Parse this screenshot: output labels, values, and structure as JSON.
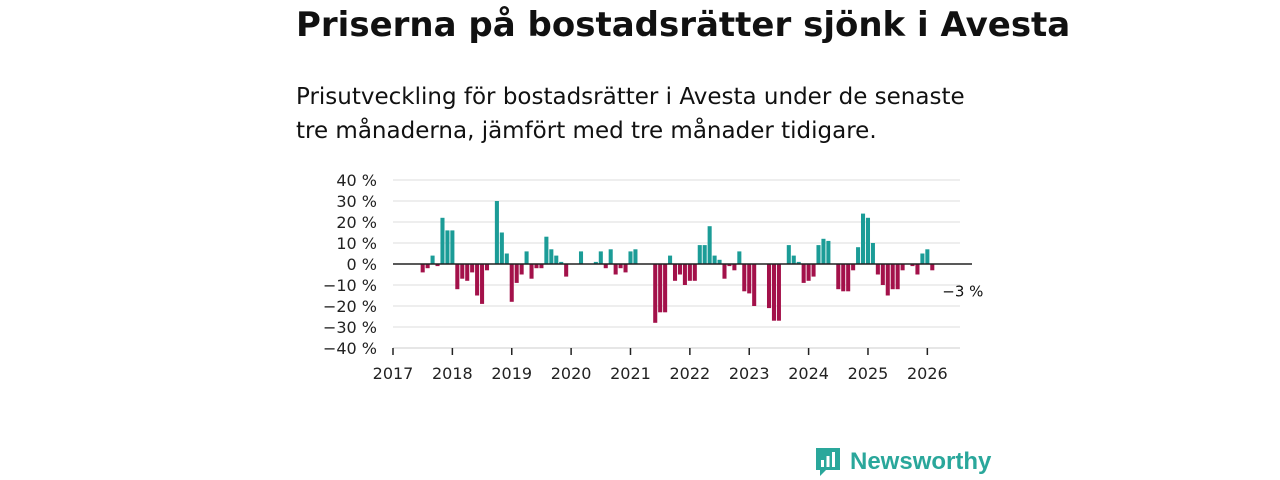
{
  "title": "Priserna på bostadsrätter sjönk i Avesta",
  "subtitle": "Prisutveckling för bostadsrätter i Avesta under de senaste tre månaderna, jämfört med tre månader tidigare.",
  "brand": "Newsworthy",
  "colors": {
    "positive": "#1b9c97",
    "negative": "#a3114a",
    "grid": "#dddddd",
    "axis": "#222222"
  },
  "chart_data": {
    "type": "bar",
    "title": "Priserna på bostadsrätter sjönk i Avesta",
    "xlabel": "",
    "ylabel": "",
    "ylim": [
      -40,
      40
    ],
    "yticks": [
      40,
      30,
      20,
      10,
      0,
      -10,
      -20,
      -30,
      -40
    ],
    "ytick_labels": [
      "40 %",
      "30 %",
      "20 %",
      "10 %",
      "0 %",
      "−10 %",
      "−20 %",
      "−30 %",
      "−40 %"
    ],
    "xlim": [
      2017,
      2026.55
    ],
    "xticks": [
      2017,
      2018,
      2019,
      2020,
      2021,
      2022,
      2023,
      2024,
      2025,
      2026
    ],
    "xtick_labels": [
      "2017",
      "2018",
      "2019",
      "2020",
      "2021",
      "2022",
      "2023",
      "2024",
      "2025",
      "2026"
    ],
    "bar_width_months": 1,
    "start": "2017-07",
    "values": [
      -4,
      -2,
      4,
      -1,
      22,
      16,
      16,
      -12,
      -7,
      -8,
      -4,
      -15,
      -19,
      -3,
      0,
      30,
      15,
      5,
      -18,
      -9,
      -5,
      6,
      -7,
      -2,
      -2,
      13,
      7,
      4,
      1,
      -6,
      0,
      0,
      6,
      0,
      0,
      1,
      6,
      -2,
      7,
      -5,
      -2,
      -4,
      6,
      7,
      0,
      0,
      0,
      -28,
      -23,
      -23,
      4,
      -8,
      -5,
      -10,
      -8,
      -8,
      9,
      9,
      18,
      4,
      2,
      -7,
      -1,
      -3,
      6,
      -13,
      -14,
      -20,
      0,
      0,
      -21,
      -27,
      -27,
      0,
      9,
      4,
      1,
      -9,
      -8,
      -6,
      9,
      12,
      11,
      0,
      -12,
      -13,
      -13,
      -3,
      8,
      24,
      22,
      10,
      -5,
      -10,
      -15,
      -12,
      -12,
      -3,
      0,
      -1,
      -5,
      5,
      7,
      -3
    ],
    "annotations": [
      {
        "label": "−3 %",
        "target": "last"
      }
    ]
  }
}
